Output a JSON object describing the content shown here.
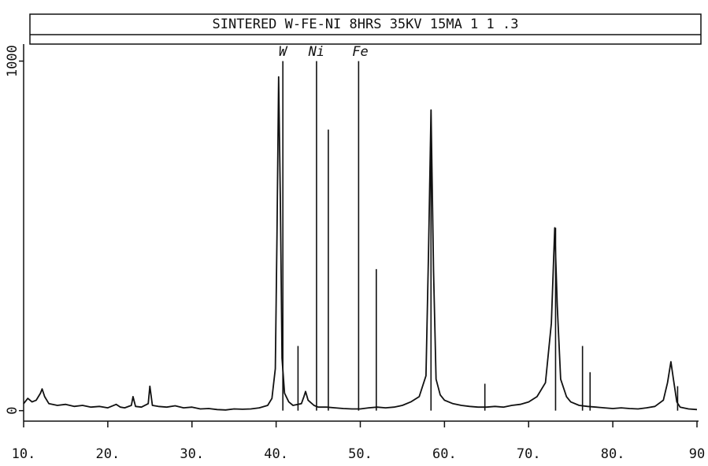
{
  "chart_data": {
    "type": "line",
    "title": "SINTERED W-FE-NI 8HRS 35KV 15MA 1 1 .3",
    "xlim": [
      10,
      90
    ],
    "ylim": [
      -30,
      1050
    ],
    "xticks": [
      {
        "value": 10,
        "label": "10."
      },
      {
        "value": 20,
        "label": "20."
      },
      {
        "value": 30,
        "label": "30."
      },
      {
        "value": 40,
        "label": "40."
      },
      {
        "value": 50,
        "label": "50."
      },
      {
        "value": 60,
        "label": "60."
      },
      {
        "value": 70,
        "label": "70."
      },
      {
        "value": 80,
        "label": "80."
      },
      90
    ],
    "yticks": [
      0,
      1000
    ],
    "series": [
      {
        "color": "#111111",
        "x": [
          10,
          10.5,
          11,
          11.5,
          12,
          12.2,
          12.5,
          13,
          14,
          15,
          16,
          17,
          18,
          19,
          20,
          21,
          21.5,
          22,
          22.8,
          23,
          23.3,
          24,
          24.8,
          25,
          25.3,
          26,
          27,
          28,
          29,
          30,
          31,
          32,
          33,
          34,
          35,
          36,
          37,
          38,
          39,
          39.5,
          39.9,
          40.1,
          40.3,
          40.5,
          40.7,
          41,
          41.5,
          42,
          43,
          43.3,
          43.5,
          43.8,
          44.5,
          45,
          46,
          47,
          48,
          49,
          50,
          51,
          52,
          53,
          54,
          55,
          56,
          57,
          57.8,
          58.1,
          58.4,
          58.7,
          59,
          59.5,
          60,
          61,
          62,
          63,
          64,
          65,
          66,
          67,
          68,
          69,
          70,
          71,
          72,
          72.7,
          73.1,
          73.4,
          73.8,
          74.5,
          75,
          76,
          77,
          78,
          79,
          80,
          81,
          82,
          83,
          84,
          85,
          86,
          86.5,
          86.9,
          87.2,
          87.6,
          88,
          89,
          90
        ],
        "values": [
          20,
          35,
          25,
          30,
          50,
          62,
          40,
          20,
          15,
          18,
          12,
          15,
          10,
          12,
          8,
          18,
          10,
          8,
          15,
          40,
          12,
          10,
          20,
          70,
          15,
          12,
          10,
          14,
          8,
          10,
          5,
          6,
          3,
          2,
          5,
          4,
          5,
          8,
          15,
          35,
          120,
          500,
          955,
          600,
          150,
          50,
          25,
          15,
          20,
          40,
          55,
          30,
          15,
          10,
          10,
          8,
          6,
          5,
          5,
          8,
          10,
          8,
          10,
          15,
          25,
          40,
          100,
          450,
          860,
          400,
          90,
          45,
          30,
          20,
          15,
          12,
          10,
          10,
          12,
          10,
          15,
          18,
          25,
          40,
          80,
          250,
          523,
          300,
          90,
          40,
          25,
          15,
          12,
          10,
          8,
          6,
          8,
          6,
          5,
          8,
          12,
          30,
          80,
          140,
          90,
          25,
          10,
          5,
          3
        ]
      }
    ],
    "reference_lines": {
      "color": "#111111",
      "x": [
        40.8,
        42.6,
        44.8,
        46.2,
        49.8,
        51.9,
        58.4,
        64.8,
        73.2,
        76.4,
        77.3,
        87.7
      ],
      "values": [
        1000,
        185,
        1000,
        804,
        1000,
        405,
        860,
        77,
        523,
        185,
        110,
        70
      ]
    },
    "annotations": [
      {
        "text": "W",
        "x": 40.8
      },
      {
        "text": "Ni",
        "x": 44.8
      },
      {
        "text": "Fe",
        "x": 50
      }
    ]
  }
}
